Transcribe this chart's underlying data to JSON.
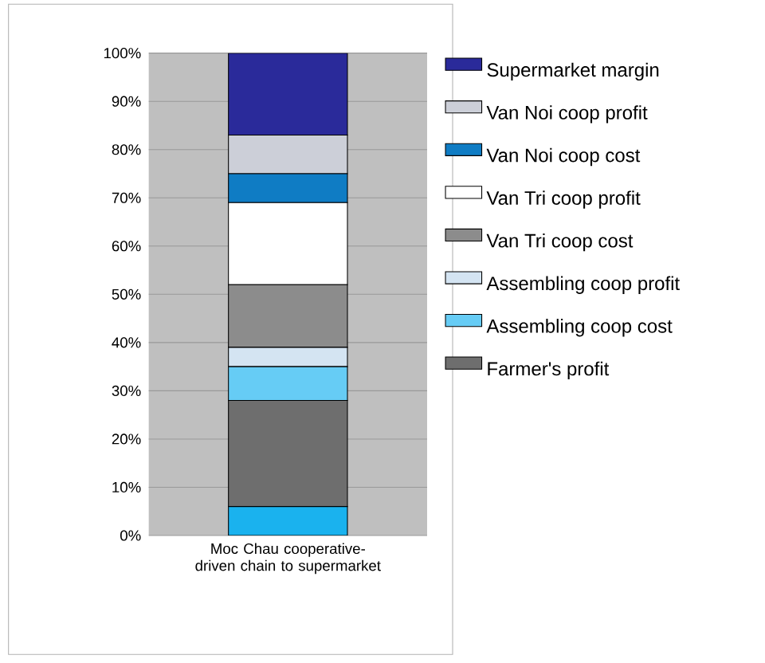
{
  "chart_data": {
    "type": "bar",
    "stacked": true,
    "categories": [
      "Moc Chau cooperative-driven chain to supermarket"
    ],
    "series": [
      {
        "color": "#1ab2ee",
        "values": [
          6
        ]
      },
      {
        "name": "Farmer's profit",
        "color": "#6e6e6e",
        "values": [
          22
        ]
      },
      {
        "name": "Assembling coop cost",
        "color": "#66ccf5",
        "values": [
          7
        ]
      },
      {
        "name": "Assembling coop profit",
        "color": "#d4e4f2",
        "values": [
          4
        ]
      },
      {
        "name": "Van Tri coop cost",
        "color": "#8c8c8c",
        "values": [
          13
        ]
      },
      {
        "name": "Van Tri coop profit",
        "color": "#ffffff",
        "values": [
          17
        ]
      },
      {
        "name": "Van Noi coop cost",
        "color": "#0f7cc4",
        "values": [
          6
        ]
      },
      {
        "name": "Van Noi  coop profit",
        "color": "#cccfd8",
        "values": [
          8
        ]
      },
      {
        "name": "Supermarket margin",
        "color": "#2a2a9a",
        "values": [
          17
        ]
      }
    ],
    "ylim": [
      0,
      100
    ],
    "yticks": [
      {
        "value": 0,
        "label": "0%"
      },
      {
        "value": 10,
        "label": "10%"
      },
      {
        "value": 20,
        "label": "20%"
      },
      {
        "value": 30,
        "label": "30%"
      },
      {
        "value": 40,
        "label": "40%"
      },
      {
        "value": 50,
        "label": "50%"
      },
      {
        "value": 60,
        "label": "60%"
      },
      {
        "value": 70,
        "label": "70%"
      },
      {
        "value": 80,
        "label": "80%"
      },
      {
        "value": 90,
        "label": "90%"
      },
      {
        "value": 100,
        "label": "100%"
      }
    ],
    "grid": "y",
    "legend": "right"
  }
}
